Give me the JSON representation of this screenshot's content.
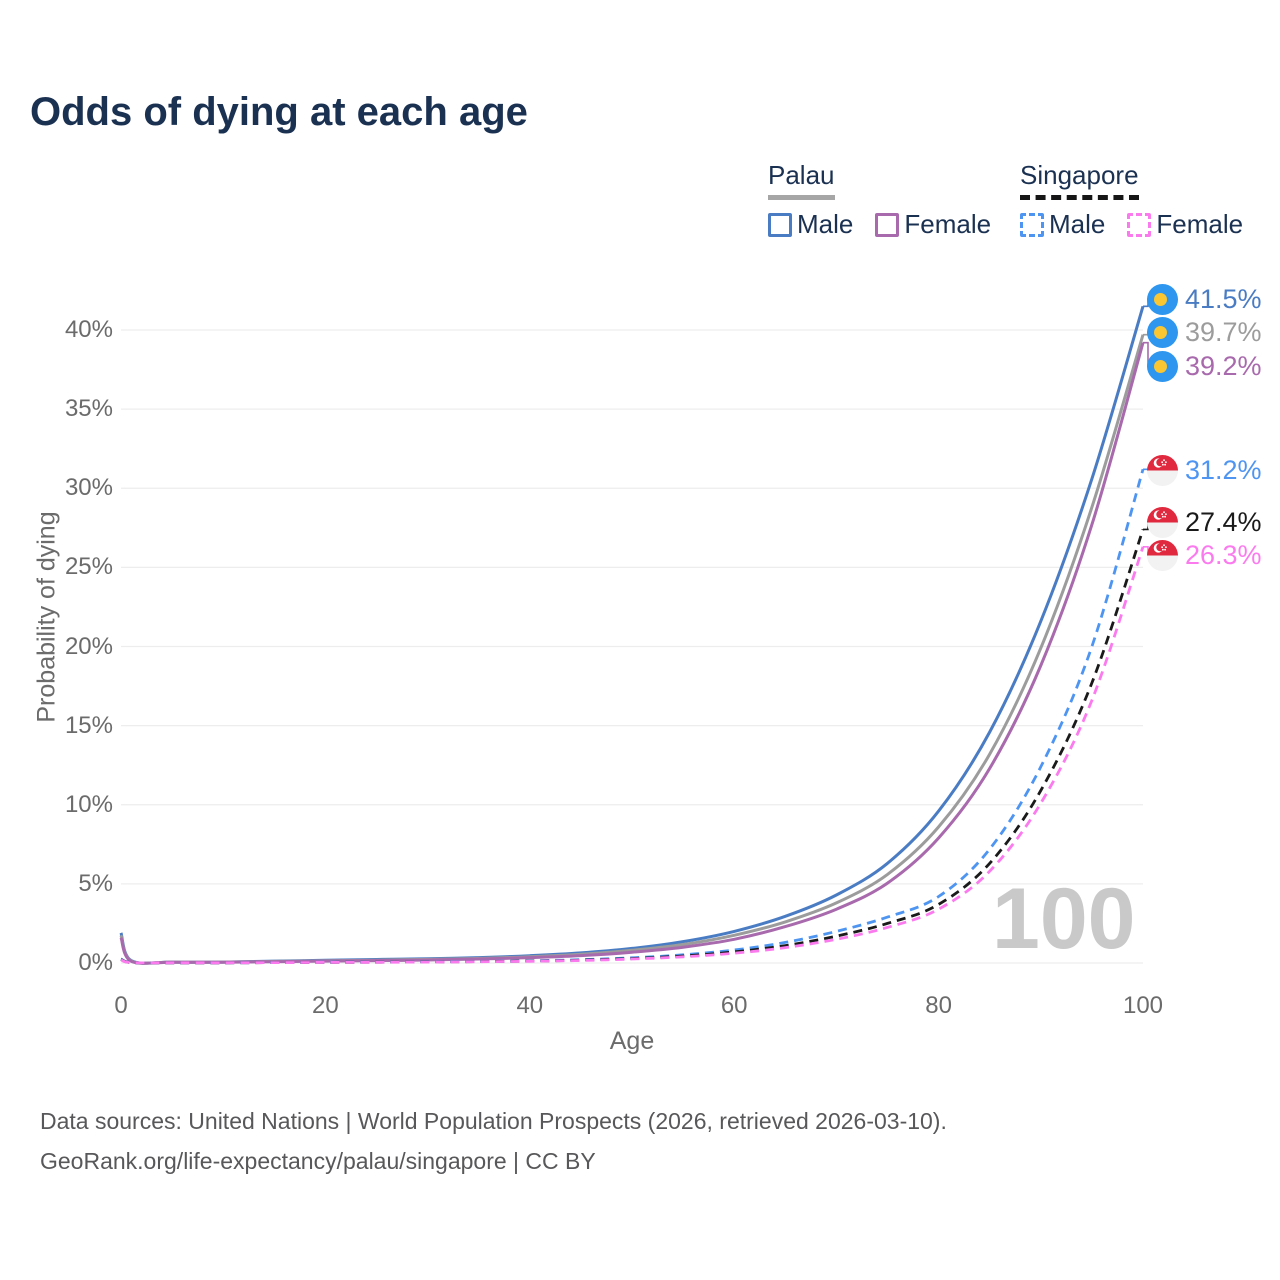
{
  "title": "Odds of dying at each age",
  "legend": {
    "groups": [
      {
        "label": "Palau",
        "line_style": "solid",
        "underline_color": "#a6a6a6",
        "items": [
          {
            "label": "Male",
            "color": "#4a7cc4",
            "dash": false
          },
          {
            "label": "Female",
            "color": "#a869ad",
            "dash": false
          }
        ]
      },
      {
        "label": "Singapore",
        "line_style": "dashed",
        "underline_color": "#161616",
        "items": [
          {
            "label": "Male",
            "color": "#4e95f2",
            "dash": true
          },
          {
            "label": "Female",
            "color": "#fb7bee",
            "dash": true
          }
        ]
      }
    ]
  },
  "chart_data": {
    "type": "line",
    "xlabel": "Age",
    "ylabel": "Probability of dying",
    "xlim": [
      0,
      100
    ],
    "ylim": [
      0,
      40
    ],
    "x_ticks": [
      0,
      20,
      40,
      60,
      80,
      100
    ],
    "y_ticks": [
      {
        "v": 0,
        "label": "0%"
      },
      {
        "v": 5,
        "label": "5%"
      },
      {
        "v": 10,
        "label": "10%"
      },
      {
        "v": 15,
        "label": "15%"
      },
      {
        "v": 20,
        "label": "20%"
      },
      {
        "v": 25,
        "label": "25%"
      },
      {
        "v": 30,
        "label": "30%"
      },
      {
        "v": 35,
        "label": "35%"
      },
      {
        "v": 40,
        "label": "40%"
      }
    ],
    "hover_age": "100",
    "grid": true,
    "legend_position": "top-right",
    "ages": [
      0,
      1,
      5,
      10,
      15,
      20,
      25,
      30,
      35,
      40,
      45,
      50,
      55,
      60,
      65,
      70,
      75,
      80,
      85,
      90,
      95,
      100
    ],
    "series": [
      {
        "name": "Palau Male",
        "country": "palau",
        "sex": "male",
        "color": "#4a7cc4",
        "dash": false,
        "end_label": "41.5%",
        "values": [
          1.9,
          0.15,
          0.06,
          0.06,
          0.12,
          0.17,
          0.22,
          0.27,
          0.34,
          0.46,
          0.64,
          0.92,
          1.35,
          2.0,
          2.95,
          4.3,
          6.3,
          9.6,
          14.6,
          21.6,
          30.6,
          41.5
        ]
      },
      {
        "name": "Palau Both sexes",
        "country": "palau",
        "sex": "all",
        "color": "#9c9c9c",
        "dash": false,
        "end_label": "39.7%",
        "values": [
          1.75,
          0.13,
          0.055,
          0.055,
          0.1,
          0.14,
          0.18,
          0.23,
          0.29,
          0.4,
          0.55,
          0.8,
          1.17,
          1.75,
          2.6,
          3.8,
          5.6,
          8.6,
          13.2,
          19.9,
          28.8,
          39.7
        ]
      },
      {
        "name": "Palau Female",
        "country": "palau",
        "sex": "female",
        "color": "#a869ad",
        "dash": false,
        "end_label": "39.2%",
        "values": [
          1.6,
          0.11,
          0.05,
          0.05,
          0.085,
          0.12,
          0.15,
          0.19,
          0.25,
          0.34,
          0.47,
          0.68,
          1.0,
          1.5,
          2.3,
          3.4,
          5.05,
          7.9,
          12.3,
          18.8,
          27.7,
          39.2
        ]
      },
      {
        "name": "Singapore Male",
        "country": "singapore",
        "sex": "male",
        "color": "#4e95f2",
        "dash": true,
        "end_label": "31.2%",
        "values": [
          0.25,
          0.03,
          0.01,
          0.01,
          0.03,
          0.05,
          0.06,
          0.08,
          0.1,
          0.14,
          0.21,
          0.33,
          0.52,
          0.82,
          1.3,
          2.0,
          2.9,
          4.2,
          7.2,
          12.4,
          20.0,
          31.2
        ]
      },
      {
        "name": "Singapore Both sexes",
        "country": "singapore",
        "sex": "all",
        "color": "#1a1a1a",
        "dash": true,
        "end_label": "27.4%",
        "values": [
          0.22,
          0.027,
          0.01,
          0.01,
          0.027,
          0.04,
          0.05,
          0.07,
          0.09,
          0.12,
          0.18,
          0.28,
          0.44,
          0.7,
          1.1,
          1.7,
          2.5,
          3.7,
          6.3,
          10.9,
          17.7,
          27.4
        ]
      },
      {
        "name": "Singapore Female",
        "country": "singapore",
        "sex": "female",
        "color": "#fb7bee",
        "dash": true,
        "end_label": "26.3%",
        "values": [
          0.2,
          0.024,
          0.01,
          0.01,
          0.024,
          0.035,
          0.045,
          0.06,
          0.08,
          0.11,
          0.16,
          0.25,
          0.39,
          0.62,
          0.97,
          1.5,
          2.25,
          3.4,
          5.8,
          10.1,
          16.6,
          26.3
        ]
      }
    ]
  },
  "footer": {
    "line1": "Data sources: United Nations | World Population Prospects (2026, retrieved 2026-03-10).",
    "line2": "GeoRank.org/life-expectancy/palau/singapore | CC BY"
  }
}
